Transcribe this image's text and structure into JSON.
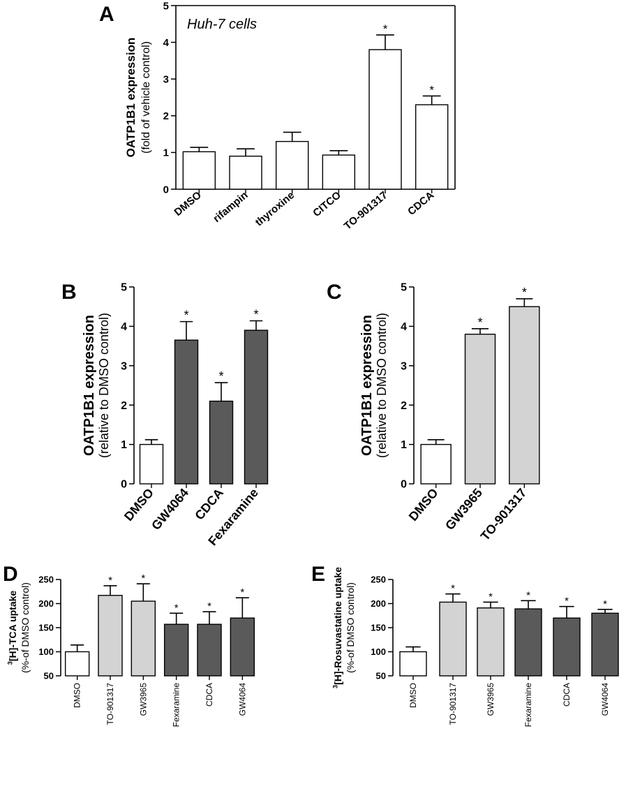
{
  "colors": {
    "vehicle_fill": "#ffffff",
    "light_fill": "#d3d3d3",
    "dark_fill": "#5a5a5a",
    "stroke": "#000000"
  },
  "chart_data": [
    {
      "panel": "A",
      "type": "bar",
      "annotation": "Huh-7 cells",
      "ylabel": "OATP1B1 expression",
      "ylabel_sub": "(fold of vehicle control)",
      "ylim": [
        0,
        5
      ],
      "yticks": [
        0,
        1,
        2,
        3,
        4,
        5
      ],
      "categories": [
        "DMSO",
        "rifampin",
        "thyroxine",
        "CITCO",
        "TO-901317",
        "CDCA"
      ],
      "values": [
        1.02,
        0.9,
        1.3,
        0.93,
        3.8,
        2.3
      ],
      "errors": [
        0.12,
        0.2,
        0.25,
        0.12,
        0.4,
        0.24
      ],
      "significant": [
        false,
        false,
        false,
        false,
        true,
        true
      ],
      "fills": [
        "white",
        "white",
        "white",
        "white",
        "white",
        "white"
      ],
      "box": true,
      "grid": false
    },
    {
      "panel": "B",
      "type": "bar",
      "ylabel": "OATP1B1 expression",
      "ylabel_sub": "(relative to DMSO control)",
      "ylim": [
        0,
        5
      ],
      "yticks": [
        0,
        1,
        2,
        3,
        4,
        5
      ],
      "categories": [
        "DMSO",
        "GW4064",
        "CDCA",
        "Fexaramine"
      ],
      "values": [
        1.0,
        3.65,
        2.1,
        3.9
      ],
      "errors": [
        0.12,
        0.47,
        0.47,
        0.24
      ],
      "significant": [
        false,
        true,
        true,
        true
      ],
      "fills": [
        "white",
        "dark",
        "dark",
        "dark"
      ],
      "box": false,
      "grid": false
    },
    {
      "panel": "C",
      "type": "bar",
      "ylabel": "OATP1B1 expression",
      "ylabel_sub": "(relative to DMSO control)",
      "ylim": [
        0,
        5
      ],
      "yticks": [
        0,
        1,
        2,
        3,
        4,
        5
      ],
      "categories": [
        "DMSO",
        "GW3965",
        "TO-901317"
      ],
      "values": [
        1.0,
        3.8,
        4.5
      ],
      "errors": [
        0.12,
        0.14,
        0.2
      ],
      "significant": [
        false,
        true,
        true
      ],
      "fills": [
        "white",
        "light",
        "light"
      ],
      "box": false,
      "grid": false
    },
    {
      "panel": "D",
      "type": "bar",
      "ylabel_sup": "3",
      "ylabel": "[H]-TCA uptake",
      "ylabel_sub": "(%-of DMSO control)",
      "ylim": [
        50,
        250
      ],
      "yticks": [
        50,
        100,
        150,
        200,
        250
      ],
      "categories": [
        "DMSO",
        "TO-901317",
        "GW3965",
        "Fexaramine",
        "CDCA",
        "GW4064"
      ],
      "values": [
        100,
        217,
        205,
        157,
        157,
        170
      ],
      "errors": [
        14,
        20,
        36,
        23,
        26,
        42
      ],
      "significant": [
        false,
        true,
        true,
        true,
        true,
        true
      ],
      "fills": [
        "white",
        "light",
        "light",
        "dark",
        "dark",
        "dark"
      ],
      "box": false,
      "grid": false
    },
    {
      "panel": "E",
      "type": "bar",
      "ylabel_sup": "3",
      "ylabel": "[H]-Rosuvastatine uptake",
      "ylabel_sub": "(%-of DMSO control)",
      "ylim": [
        50,
        250
      ],
      "yticks": [
        50,
        100,
        150,
        200,
        250
      ],
      "categories": [
        "DMSO",
        "TO-901317",
        "GW3965",
        "Fexaramine",
        "CDCA",
        "GW4064"
      ],
      "values": [
        100,
        203,
        191,
        189,
        170,
        180
      ],
      "errors": [
        10,
        17,
        12,
        17,
        24,
        8
      ],
      "significant": [
        false,
        true,
        true,
        true,
        true,
        true
      ],
      "fills": [
        "white",
        "light",
        "light",
        "dark",
        "dark",
        "dark"
      ],
      "box": false,
      "grid": false
    }
  ]
}
